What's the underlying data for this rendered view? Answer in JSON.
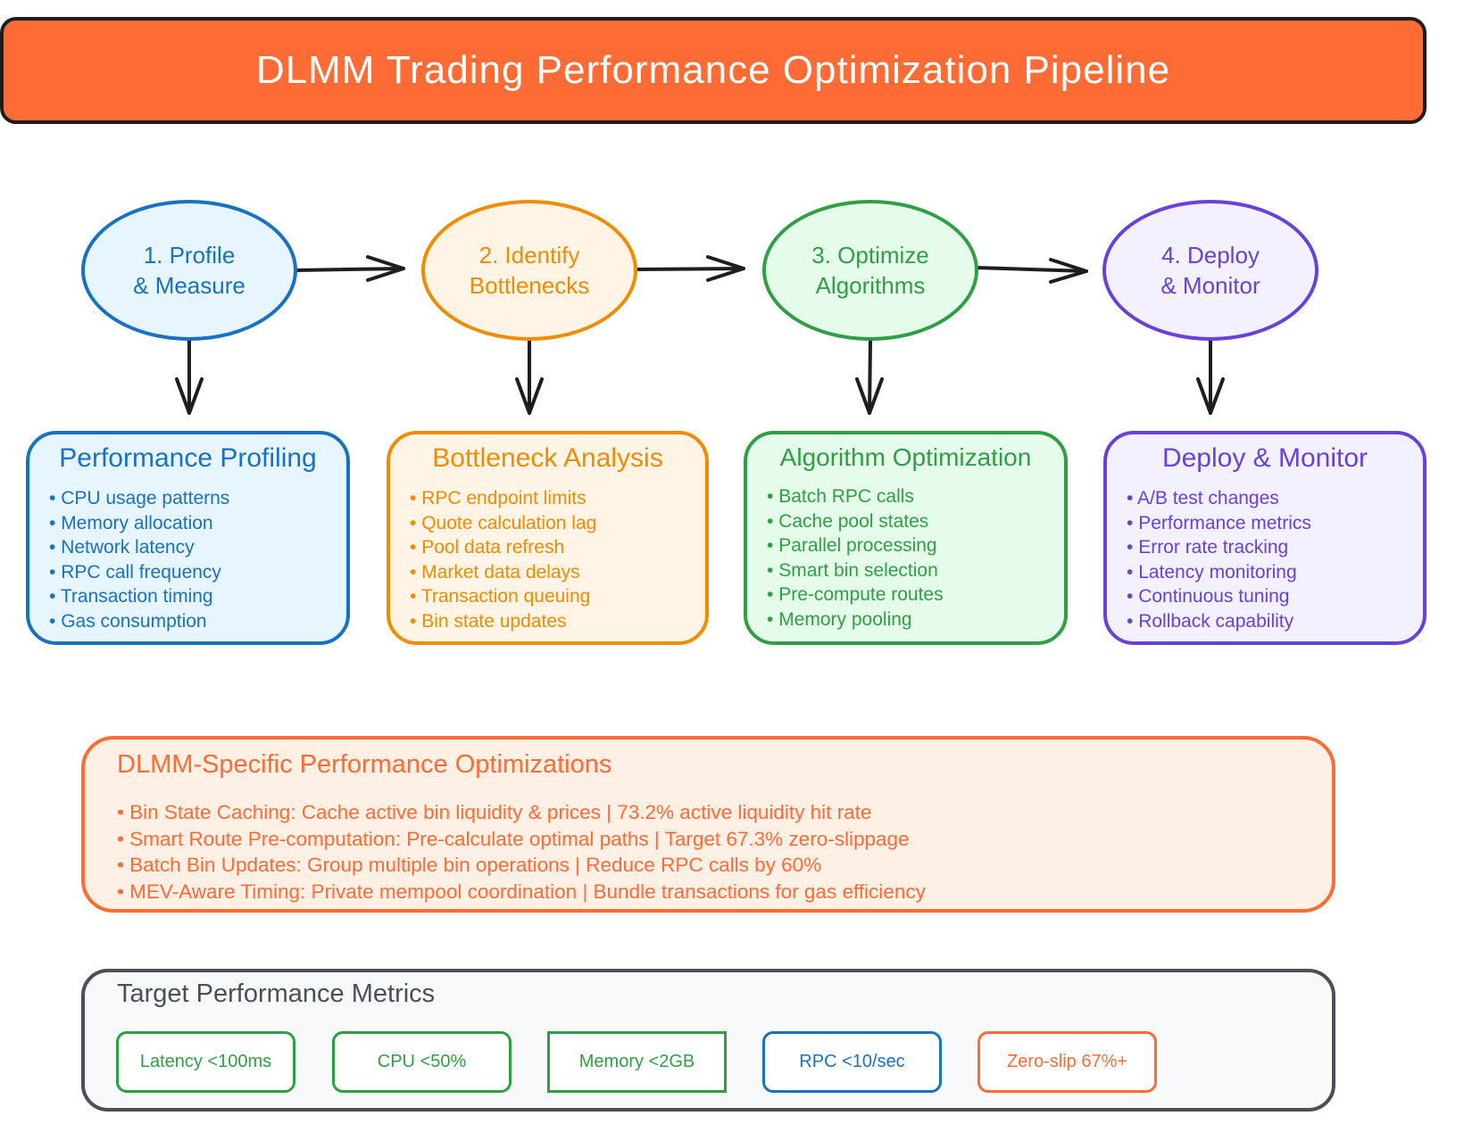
{
  "title": "DLMM Trading Performance Optimization Pipeline",
  "colors": {
    "title_bg": "#ff6b35",
    "blue": "#1971c2",
    "orange": "#f08c00",
    "green": "#2f9e44",
    "purple": "#6741d9",
    "red_orange": "#ff6b35",
    "gray": "#495057",
    "arrow": "#1e1e1e"
  },
  "steps": [
    {
      "label": "1. Profile\n& Measure"
    },
    {
      "label": "2. Identify\nBottlenecks"
    },
    {
      "label": "3. Optimize\nAlgorithms"
    },
    {
      "label": "4. Deploy\n& Monitor"
    }
  ],
  "cards": [
    {
      "title": "Performance Profiling",
      "items": [
        "CPU usage patterns",
        "Memory allocation",
        "Network latency",
        "RPC call frequency",
        "Transaction timing",
        "Gas consumption"
      ]
    },
    {
      "title": "Bottleneck Analysis",
      "items": [
        "RPC endpoint limits",
        "Quote calculation lag",
        "Pool data refresh",
        "Market data delays",
        "Transaction queuing",
        "Bin state updates"
      ]
    },
    {
      "title": "Algorithm Optimization",
      "items": [
        "Batch RPC calls",
        "Cache pool states",
        "Parallel processing",
        "Smart bin selection",
        "Pre-compute routes",
        "Memory pooling"
      ]
    },
    {
      "title": "Deploy & Monitor",
      "items": [
        "A/B test changes",
        "Performance metrics",
        "Error rate tracking",
        "Latency monitoring",
        "Continuous tuning",
        "Rollback capability"
      ]
    }
  ],
  "optimizations": {
    "title": "DLMM-Specific Performance Optimizations",
    "items": [
      "Bin State Caching: Cache active bin liquidity & prices | 73.2% active liquidity hit rate",
      "Smart Route Pre-computation: Pre-calculate optimal paths | Target 67.3% zero-slippage",
      "Batch Bin Updates: Group multiple bin operations | Reduce RPC calls by 60%",
      "MEV-Aware Timing: Private mempool coordination | Bundle transactions for gas efficiency"
    ]
  },
  "metrics": {
    "title": "Target Performance Metrics",
    "chips": [
      "Latency <100ms",
      "CPU <50%",
      "Memory <2GB",
      "RPC <10/sec",
      "Zero-slip 67%+"
    ]
  }
}
